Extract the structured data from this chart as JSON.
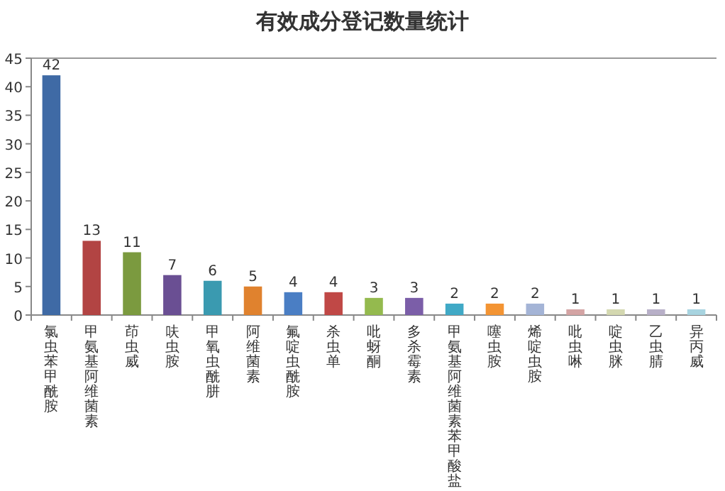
{
  "chart_data": {
    "type": "bar",
    "title": "有效成分登记数量统计",
    "categories": [
      "氯虫苯甲酰胺",
      "甲氨基阿维菌素",
      "茚虫威",
      "呋虫胺",
      "甲氧虫酰肼",
      "阿维菌素",
      "氟啶虫酰胺",
      "杀虫单",
      "吡蚜酮",
      "多杀霉素",
      "甲氨基阿维菌素苯甲酸盐",
      "噻虫胺",
      "烯啶虫胺",
      "吡虫啉",
      "啶虫脒",
      "乙虫腈",
      "异丙威"
    ],
    "values": [
      42,
      13,
      11,
      7,
      6,
      5,
      4,
      4,
      3,
      3,
      2,
      2,
      2,
      1,
      1,
      1,
      1
    ],
    "colors": [
      "#3f6aa5",
      "#b24443",
      "#7b9a3f",
      "#6a4f93",
      "#3a9ab0",
      "#e0822e",
      "#4a7ec4",
      "#c04846",
      "#94ba4e",
      "#7b5ea8",
      "#40a9c6",
      "#f39433",
      "#a4b4d6",
      "#d4a4a4",
      "#d4d8b0",
      "#b8b0c8",
      "#a8d4e0"
    ],
    "ylim": [
      0,
      45
    ],
    "yticks": [
      0,
      5,
      10,
      15,
      20,
      25,
      30,
      35,
      40,
      45
    ],
    "data_labels": true,
    "grid": false
  }
}
